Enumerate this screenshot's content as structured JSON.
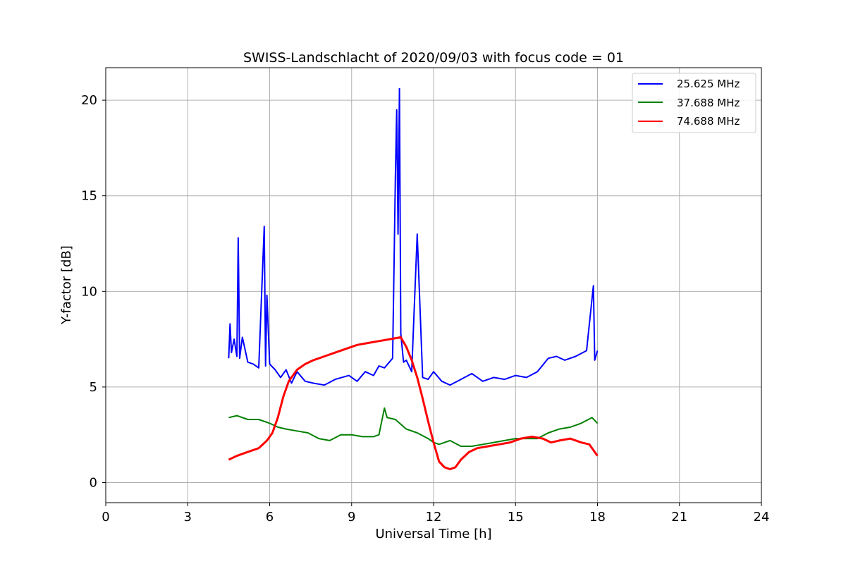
{
  "chart_data": {
    "type": "line",
    "title": "SWISS-Landschlacht of 2020/09/03 with focus code = 01",
    "xlabel": "Universal Time [h]",
    "ylabel": "Y-factor [dB]",
    "xlim": [
      0,
      24
    ],
    "ylim": [
      -1.05,
      21.7
    ],
    "xticks": [
      0,
      3,
      6,
      9,
      12,
      15,
      18,
      21,
      24
    ],
    "yticks": [
      0,
      5,
      10,
      15,
      20
    ],
    "grid": true,
    "legend_position": "top-right",
    "series": [
      {
        "name": "25.625 MHz",
        "color": "#0000ff",
        "x": [
          4.5,
          4.55,
          4.6,
          4.7,
          4.8,
          4.85,
          4.9,
          5.0,
          5.2,
          5.4,
          5.6,
          5.8,
          5.85,
          5.9,
          6.0,
          6.2,
          6.4,
          6.6,
          6.8,
          7.0,
          7.3,
          7.6,
          8.0,
          8.4,
          8.9,
          9.2,
          9.5,
          9.8,
          10.0,
          10.2,
          10.5,
          10.6,
          10.65,
          10.7,
          10.75,
          10.8,
          10.9,
          11.0,
          11.2,
          11.4,
          11.6,
          11.8,
          12.0,
          12.3,
          12.6,
          13.0,
          13.4,
          13.8,
          14.2,
          14.6,
          15.0,
          15.4,
          15.8,
          16.2,
          16.5,
          16.8,
          17.2,
          17.6,
          17.85,
          17.9,
          18.0
        ],
        "y": [
          6.5,
          8.3,
          6.8,
          7.5,
          6.6,
          12.8,
          6.5,
          7.6,
          6.3,
          6.2,
          6.0,
          13.4,
          6.1,
          9.8,
          6.2,
          5.9,
          5.5,
          5.9,
          5.2,
          5.8,
          5.3,
          5.2,
          5.1,
          5.4,
          5.6,
          5.3,
          5.8,
          5.6,
          6.1,
          6.0,
          6.5,
          15.9,
          19.5,
          13.0,
          20.6,
          7.8,
          6.3,
          6.4,
          5.8,
          13.0,
          5.5,
          5.4,
          5.8,
          5.3,
          5.1,
          5.4,
          5.7,
          5.3,
          5.5,
          5.4,
          5.6,
          5.5,
          5.8,
          6.5,
          6.6,
          6.4,
          6.6,
          6.9,
          10.3,
          6.4,
          6.9
        ]
      },
      {
        "name": "37.688 MHz",
        "color": "#008000",
        "x": [
          4.5,
          4.8,
          5.2,
          5.6,
          6.0,
          6.3,
          6.6,
          7.0,
          7.4,
          7.8,
          8.2,
          8.6,
          9.0,
          9.4,
          9.8,
          10.0,
          10.2,
          10.3,
          10.6,
          11.0,
          11.4,
          11.8,
          12.0,
          12.2,
          12.6,
          13.0,
          13.4,
          13.8,
          14.2,
          14.6,
          15.0,
          15.4,
          15.8,
          16.2,
          16.6,
          17.0,
          17.4,
          17.8,
          18.0
        ],
        "y": [
          3.4,
          3.5,
          3.3,
          3.3,
          3.1,
          2.9,
          2.8,
          2.7,
          2.6,
          2.3,
          2.2,
          2.5,
          2.5,
          2.4,
          2.4,
          2.5,
          3.9,
          3.4,
          3.3,
          2.8,
          2.6,
          2.3,
          2.1,
          2.0,
          2.2,
          1.9,
          1.9,
          2.0,
          2.1,
          2.2,
          2.3,
          2.3,
          2.3,
          2.6,
          2.8,
          2.9,
          3.1,
          3.4,
          3.1
        ]
      },
      {
        "name": "74.688 MHz",
        "color": "#ff0000",
        "x": [
          4.5,
          4.8,
          5.2,
          5.6,
          5.9,
          6.1,
          6.3,
          6.5,
          6.7,
          7.0,
          7.3,
          7.6,
          8.0,
          8.4,
          8.8,
          9.2,
          9.6,
          10.0,
          10.4,
          10.8,
          11.0,
          11.2,
          11.4,
          11.6,
          11.8,
          12.0,
          12.2,
          12.4,
          12.6,
          12.8,
          13.0,
          13.3,
          13.6,
          14.0,
          14.4,
          14.8,
          15.2,
          15.6,
          16.0,
          16.3,
          16.6,
          17.0,
          17.4,
          17.7,
          17.9,
          18.0
        ],
        "y": [
          1.2,
          1.4,
          1.6,
          1.8,
          2.2,
          2.6,
          3.4,
          4.5,
          5.3,
          5.9,
          6.2,
          6.4,
          6.6,
          6.8,
          7.0,
          7.2,
          7.3,
          7.4,
          7.5,
          7.6,
          7.1,
          6.4,
          5.5,
          4.4,
          3.2,
          2.1,
          1.1,
          0.8,
          0.7,
          0.8,
          1.2,
          1.6,
          1.8,
          1.9,
          2.0,
          2.1,
          2.3,
          2.4,
          2.3,
          2.1,
          2.2,
          2.3,
          2.1,
          2.0,
          1.6,
          1.4
        ]
      }
    ]
  }
}
